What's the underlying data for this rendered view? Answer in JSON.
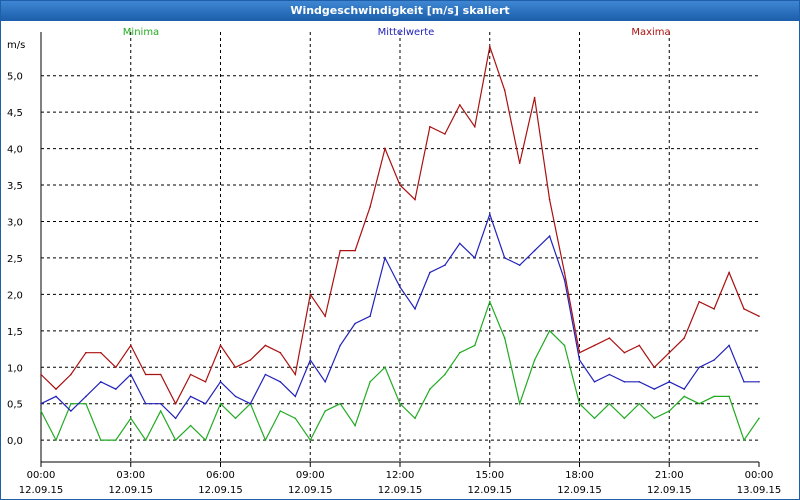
{
  "window": {
    "title": "Windgeschwindigkeit [m/s] skaliert"
  },
  "chart_data": {
    "type": "line",
    "title": "Windgeschwindigkeit [m/s] skaliert",
    "ylabel": "m/s",
    "xlabel": "",
    "ylim": [
      -0.3,
      5.6
    ],
    "xlim": [
      "12.09.15 00:00",
      "13.09.15 00:00"
    ],
    "grid": true,
    "legend_placement": "top",
    "x_ticks": [
      {
        "time": "00:00",
        "date": "12.09.15"
      },
      {
        "time": "03:00",
        "date": "12.09.15"
      },
      {
        "time": "06:00",
        "date": "12.09.15"
      },
      {
        "time": "09:00",
        "date": "12.09.15"
      },
      {
        "time": "12:00",
        "date": "12.09.15"
      },
      {
        "time": "15:00",
        "date": "12.09.15"
      },
      {
        "time": "18:00",
        "date": "12.09.15"
      },
      {
        "time": "21:00",
        "date": "12.09.15"
      },
      {
        "time": "00:00",
        "date": "13.09.15"
      }
    ],
    "y_ticks": [
      {
        "value": 0.0,
        "label": "0,0"
      },
      {
        "value": 0.5,
        "label": "0,5"
      },
      {
        "value": 1.0,
        "label": "1,0"
      },
      {
        "value": 1.5,
        "label": "1,5"
      },
      {
        "value": 2.0,
        "label": "2,0"
      },
      {
        "value": 2.5,
        "label": "2,5"
      },
      {
        "value": 3.0,
        "label": "3,0"
      },
      {
        "value": 3.5,
        "label": "3,5"
      },
      {
        "value": 4.0,
        "label": "4,0"
      },
      {
        "value": 4.5,
        "label": "4,5"
      },
      {
        "value": 5.0,
        "label": "5,0"
      }
    ],
    "x_time_labels": [
      "00:00",
      "00:30",
      "01:00",
      "01:30",
      "02:00",
      "02:30",
      "03:00",
      "03:30",
      "04:00",
      "04:30",
      "05:00",
      "05:30",
      "06:00",
      "06:30",
      "07:00",
      "07:30",
      "08:00",
      "08:30",
      "09:00",
      "09:30",
      "10:00",
      "10:30",
      "11:00",
      "11:30",
      "12:00",
      "12:30",
      "13:00",
      "13:30",
      "14:00",
      "14:30",
      "15:00",
      "15:30",
      "16:00",
      "16:30",
      "17:00",
      "17:30",
      "18:00",
      "18:30",
      "19:00",
      "19:30",
      "20:00",
      "20:30",
      "21:00",
      "21:30",
      "22:00",
      "22:30",
      "23:00",
      "23:30",
      "00:00"
    ],
    "series": [
      {
        "name": "Minima",
        "color": "#22aa22",
        "values": [
          0.4,
          0.0,
          0.5,
          0.5,
          0.0,
          0.0,
          0.3,
          0.0,
          0.4,
          0.0,
          0.2,
          0.0,
          0.5,
          0.3,
          0.5,
          0.0,
          0.4,
          0.3,
          0.0,
          0.4,
          0.5,
          0.2,
          0.8,
          1.0,
          0.5,
          0.3,
          0.7,
          0.9,
          1.2,
          1.3,
          1.9,
          1.4,
          0.5,
          1.1,
          1.5,
          1.3,
          0.5,
          0.3,
          0.5,
          0.3,
          0.5,
          0.3,
          0.4,
          0.6,
          0.5,
          0.6,
          0.6,
          0.0,
          0.3
        ]
      },
      {
        "name": "Mittelwerte",
        "color": "#2222bb",
        "values": [
          0.5,
          0.6,
          0.4,
          0.6,
          0.8,
          0.7,
          0.9,
          0.5,
          0.5,
          0.3,
          0.6,
          0.5,
          0.8,
          0.6,
          0.5,
          0.9,
          0.8,
          0.6,
          1.1,
          0.8,
          1.3,
          1.6,
          1.7,
          2.5,
          2.1,
          1.8,
          2.3,
          2.4,
          2.7,
          2.5,
          3.1,
          2.5,
          2.4,
          2.6,
          2.8,
          2.2,
          1.1,
          0.8,
          0.9,
          0.8,
          0.8,
          0.7,
          0.8,
          0.7,
          1.0,
          1.1,
          1.3,
          0.8,
          0.8
        ]
      },
      {
        "name": "Maxima",
        "color": "#aa1111",
        "values": [
          0.9,
          0.7,
          0.9,
          1.2,
          1.2,
          1.0,
          1.3,
          0.9,
          0.9,
          0.5,
          0.9,
          0.8,
          1.3,
          1.0,
          1.1,
          1.3,
          1.2,
          0.9,
          2.0,
          1.7,
          2.6,
          2.6,
          3.2,
          4.0,
          3.5,
          3.3,
          4.3,
          4.2,
          4.6,
          4.3,
          5.4,
          4.8,
          3.8,
          4.7,
          3.3,
          2.3,
          1.2,
          1.3,
          1.4,
          1.2,
          1.3,
          1.0,
          1.2,
          1.4,
          1.9,
          1.8,
          2.3,
          1.8,
          1.7
        ]
      }
    ]
  }
}
